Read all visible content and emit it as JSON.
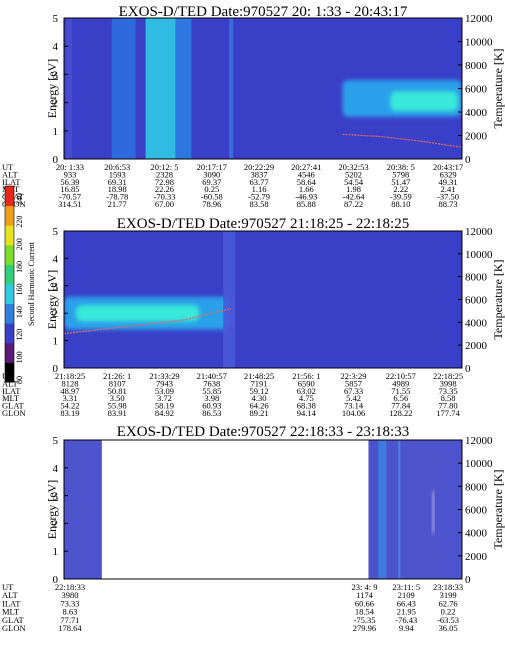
{
  "chart_data": [
    {
      "type": "heatmap",
      "title": "EXOS-D/TED   Date:970527  20: 1:33 - 20:43:17",
      "ylabel": "Energy [eV]",
      "y2label": "Temperature [K]",
      "ylim": [
        0,
        5
      ],
      "y2lim": [
        0,
        12000
      ],
      "yticks": [
        "0",
        "1",
        "2",
        "3",
        "4",
        "5"
      ],
      "y2ticks": [
        "0",
        "2000",
        "4000",
        "6000",
        "8000",
        "10000",
        "12000"
      ],
      "background_color": "#3a3fc8",
      "ephemeris": {
        "row_labels": [
          "UT",
          "ALT",
          "ILAT",
          "MLT",
          "GLAT",
          "GLON"
        ],
        "columns": [
          [
            "20: 1:33",
            "933",
            "56.39",
            "16.85",
            "-70.57",
            "314.51"
          ],
          [
            "20:6:53",
            "1593",
            "69.31",
            "18.98",
            "-78.78",
            "21.77"
          ],
          [
            "20:12: 5",
            "2328",
            "72.98",
            "22.26",
            "-70.33",
            "67.00"
          ],
          [
            "20:17:17",
            "3090",
            "69.37",
            "0.25",
            "-60.58",
            "78.96"
          ],
          [
            "20:22:29",
            "3837",
            "63.77",
            "1.16",
            "-52.79",
            "83.58"
          ],
          [
            "20:27:41",
            "4546",
            "58.64",
            "1.66",
            "-46.93",
            "85.88"
          ],
          [
            "20:32:53",
            "5202",
            "54.54",
            "1.98",
            "-42.64",
            "87.22"
          ],
          [
            "20:38: 5",
            "5798",
            "51.47",
            "2.22",
            "-39.59",
            "88.10"
          ],
          [
            "20:43:17",
            "6329",
            "49.31",
            "2.41",
            "-37.50",
            "88.73"
          ]
        ]
      },
      "features": [
        {
          "kind": "band",
          "x_from": 0.12,
          "x_to": 0.18,
          "color": "#2d6fe0"
        },
        {
          "kind": "band",
          "x_from": 0.205,
          "x_to": 0.28,
          "color": "#30c9e6"
        },
        {
          "kind": "band",
          "x_from": 0.28,
          "x_to": 0.32,
          "color": "#2e7de2"
        },
        {
          "kind": "band",
          "x_from": 0.415,
          "x_to": 0.425,
          "color": "#3b6fe0"
        },
        {
          "kind": "band",
          "x_from": 0.005,
          "x_to": 0.02,
          "color": "#4a4fd0"
        },
        {
          "kind": "blob",
          "x_from": 0.7,
          "x_to": 1.0,
          "y_from": 1.5,
          "y_to": 2.8,
          "color": "#2aa0ea"
        },
        {
          "kind": "blob",
          "x_from": 0.82,
          "x_to": 0.99,
          "y_from": 1.7,
          "y_to": 2.4,
          "color": "#38e8d8"
        }
      ],
      "temperature_trace": {
        "x": [
          0.7,
          0.8,
          0.9,
          1.0
        ],
        "y": [
          2100,
          1900,
          1500,
          1000
        ],
        "color": "#e06a5a"
      }
    },
    {
      "type": "heatmap",
      "title": "EXOS-D/TED   Date:970527  21:18:25 - 22:18:25",
      "ylabel": "Energy [eV]",
      "y2label": "Temperature [K]",
      "ylim": [
        0,
        5
      ],
      "y2lim": [
        0,
        12000
      ],
      "yticks": [
        "0",
        "1",
        "2",
        "3",
        "4",
        "5"
      ],
      "y2ticks": [
        "0",
        "2000",
        "4000",
        "6000",
        "8000",
        "10000",
        "12000"
      ],
      "background_color": "#3a3fc8",
      "ephemeris": {
        "row_labels": [
          "UT",
          "ALT",
          "ILAT",
          "MLT",
          "GLAT",
          "GLON"
        ],
        "columns": [
          [
            "21:18:25",
            "8128",
            "48.97",
            "3.31",
            "54.22",
            "83.19"
          ],
          [
            "21:26: 1",
            "8107",
            "50.81",
            "3.50",
            "55.98",
            "83.91"
          ],
          [
            "21:33:29",
            "7943",
            "53.09",
            "3.72",
            "58.19",
            "84.92"
          ],
          [
            "21:40:57",
            "7638",
            "55.85",
            "3.98",
            "60.93",
            "86.53"
          ],
          [
            "21:48:25",
            "7191",
            "59.12",
            "4.30",
            "64.26",
            "89.21"
          ],
          [
            "21:56: 1",
            "6590",
            "63.02",
            "4.75",
            "68.38",
            "94.14"
          ],
          [
            "22:3:29",
            "5857",
            "67.33",
            "5.42",
            "73.14",
            "104.06"
          ],
          [
            "22:10:57",
            "4989",
            "71.55",
            "6.56",
            "77.84",
            "128.22"
          ],
          [
            "22:18:25",
            "3998",
            "73.35",
            "8.58",
            "77.80",
            "177.74"
          ]
        ]
      },
      "features": [
        {
          "kind": "blob",
          "x_from": 0.0,
          "x_to": 0.42,
          "y_from": 1.4,
          "y_to": 2.6,
          "color": "#2aa0ea"
        },
        {
          "kind": "blob",
          "x_from": 0.03,
          "x_to": 0.34,
          "y_from": 1.7,
          "y_to": 2.3,
          "color": "#38e8d8"
        },
        {
          "kind": "band",
          "x_from": 0.4,
          "x_to": 0.43,
          "color": "#4a58d8"
        }
      ],
      "temperature_trace": {
        "x": [
          0.0,
          0.15,
          0.3,
          0.42
        ],
        "y": [
          3000,
          3600,
          4200,
          5200
        ],
        "color": "#e06a5a"
      }
    },
    {
      "type": "heatmap",
      "title": "EXOS-D/TED   Date:970527  22:18:33 - 23:18:33",
      "ylabel": "Energy [eV]",
      "y2label": "Temperature [K]",
      "ylim": [
        0,
        5
      ],
      "y2lim": [
        0,
        12000
      ],
      "yticks": [
        "0",
        "1",
        "2",
        "3",
        "4",
        "5"
      ],
      "y2ticks": [
        "0",
        "2000",
        "4000",
        "6000",
        "8000",
        "10000",
        "12000"
      ],
      "background_color": "#3a3fc8",
      "ephemeris": {
        "row_labels": [
          "UT",
          "ALT",
          "ILAT",
          "MLT",
          "GLAT",
          "GLON"
        ],
        "columns": [
          [
            "22:18:33",
            "3980",
            "73.33",
            "8.63",
            "77.71",
            "178.64"
          ],
          [
            "23: 4: 9",
            "1174",
            "60.66",
            "18.54",
            "-75.35",
            "279.96"
          ],
          [
            "23:11: 5",
            "2109",
            "66.43",
            "21.95",
            "-76.43",
            "9.94"
          ],
          [
            "23:18:33",
            "3199",
            "62.76",
            "0.22",
            "-63.53",
            "36.05"
          ]
        ]
      },
      "features": [
        {
          "kind": "band",
          "x_from": 0.0,
          "x_to": 0.095,
          "color": "#3a3fc8"
        },
        {
          "kind": "band",
          "x_from": 0.765,
          "x_to": 1.0,
          "color": "#3a3fc8"
        },
        {
          "kind": "band",
          "x_from": 0.79,
          "x_to": 0.81,
          "color": "#3d7fe2"
        },
        {
          "kind": "band",
          "x_from": 0.84,
          "x_to": 0.845,
          "color": "#4b86e4"
        },
        {
          "kind": "blob",
          "x_from": 0.925,
          "x_to": 0.93,
          "y_from": 1.6,
          "y_to": 3.2,
          "color": "#d8d8f0"
        }
      ]
    }
  ],
  "colorbar": {
    "label": "Second Harmonic Current",
    "ticks": [
      "80",
      "100",
      "120",
      "140",
      "160",
      "180",
      "200",
      "220",
      "240"
    ],
    "colors": [
      "#000000",
      "#5a1a7a",
      "#3a3fc8",
      "#2f7ee0",
      "#30c9e6",
      "#2fd07a",
      "#7ddc2a",
      "#e6e21e",
      "#f0a018",
      "#e8281a"
    ]
  }
}
